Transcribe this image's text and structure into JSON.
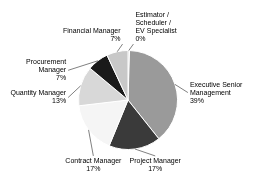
{
  "chart_data": {
    "type": "pie",
    "categories": [
      "Estimator /\nScheduler /\nEV Specialist\n0%",
      "Executive Senior\nManagement\n39%",
      "Project Manager\n17%",
      "Contract Manager\n17%",
      "Quantity Manager\n13%",
      "Procurement\nManager\n7%",
      "Financial Manager\n7%"
    ],
    "values": [
      0.5,
      39,
      17,
      17,
      13,
      7,
      7
    ],
    "colors": [
      "#b8b8b8",
      "#9a9a9a",
      "#3a3a3a",
      "#f5f5f5",
      "#d8d8d8",
      "#1a1a1a",
      "#c8c8c8"
    ]
  }
}
